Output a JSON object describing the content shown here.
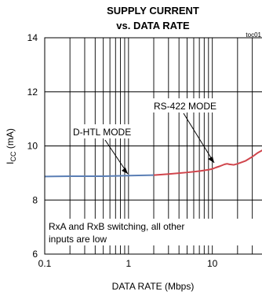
{
  "chart_data": {
    "type": "line",
    "title_line1": "SUPPLY CURRENT",
    "title_line2": "vs. DATA RATE",
    "figure_id": "toc01",
    "xlabel": "DATA RATE (Mbps)",
    "ylabel_main": "I",
    "ylabel_sub": "CC",
    "ylabel_unit": " (mA)",
    "x_scale": "log",
    "xlim": [
      0.1,
      40
    ],
    "ylim": [
      6,
      14
    ],
    "x_tick_labels": [
      "0.1",
      "1",
      "10"
    ],
    "x_tick_values": [
      0.1,
      1,
      10
    ],
    "y_tick_labels": [
      "6",
      "8",
      "10",
      "12",
      "14"
    ],
    "y_tick_values": [
      6,
      8,
      10,
      12,
      14
    ],
    "grid": true,
    "series": [
      {
        "name": "D-HTL MODE",
        "color": "#5b7fb5",
        "x": [
          0.1,
          0.2,
          0.5,
          1.0,
          2.0
        ],
        "y": [
          8.87,
          8.88,
          8.88,
          8.9,
          8.92
        ]
      },
      {
        "name": "RS-422 MODE",
        "color": "#d0454c",
        "x": [
          2.0,
          3.0,
          5.0,
          7.0,
          9.0,
          10.0,
          11.0,
          12.0,
          13.0,
          14.0,
          15.0,
          16.0,
          18.0,
          20.0,
          25.0,
          30.0,
          35.0,
          40.0
        ],
        "y": [
          8.92,
          8.96,
          9.02,
          9.07,
          9.12,
          9.15,
          9.2,
          9.24,
          9.28,
          9.32,
          9.34,
          9.32,
          9.3,
          9.34,
          9.45,
          9.6,
          9.75,
          9.85
        ]
      }
    ],
    "annotations": [
      {
        "text": "D-HTL MODE",
        "x": 1.0,
        "y": 8.9
      },
      {
        "text": "RS-422 MODE",
        "x": 10.0,
        "y": 9.15
      }
    ],
    "note_line1": "RxA and RxB switching, all other",
    "note_line2": "inputs are low"
  }
}
